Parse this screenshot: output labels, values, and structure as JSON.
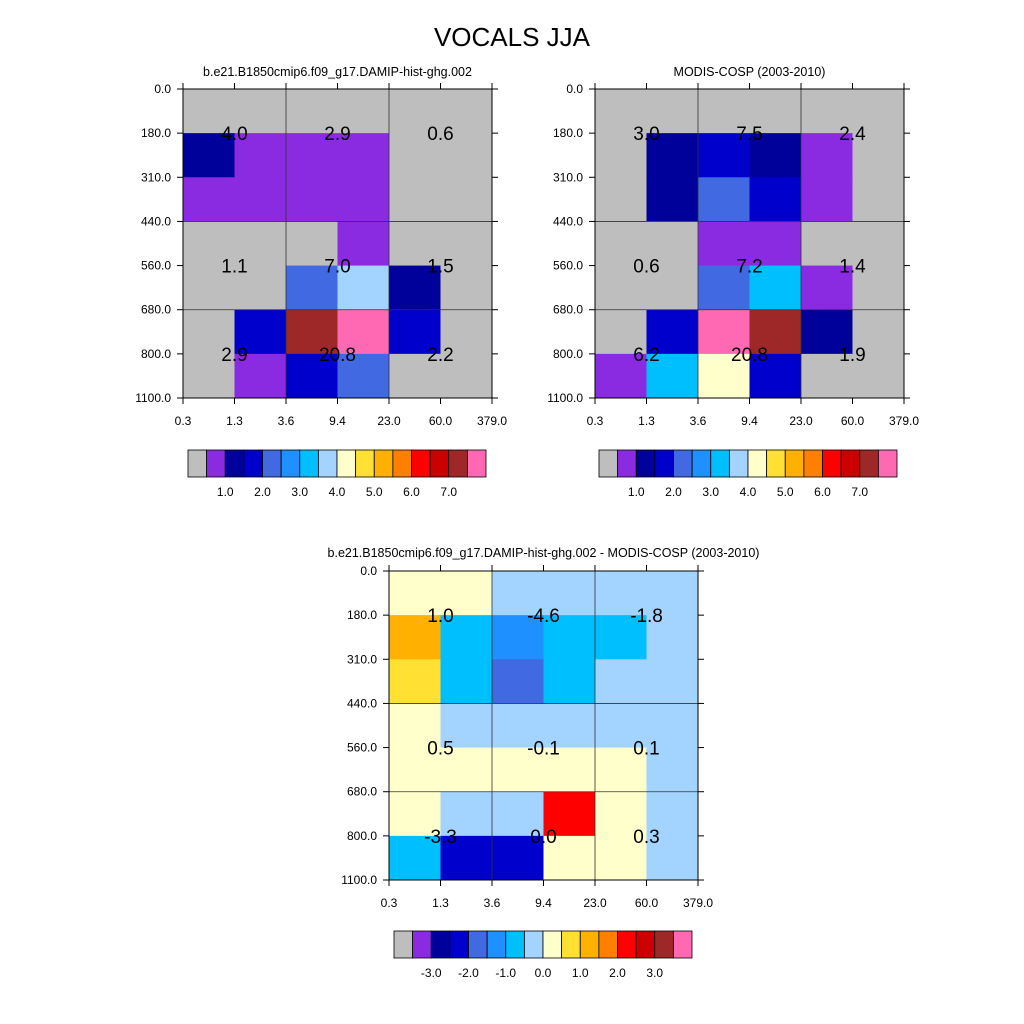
{
  "figure": {
    "title": "VOCALS JJA"
  },
  "chart_data": [
    {
      "type": "heatmap",
      "title": "b.e21.B1850cmip6.f09_g17.DAMIP-hist-ghg.002",
      "x_ticks": [
        "0.3",
        "1.3",
        "3.6",
        "9.4",
        "23.0",
        "60.0",
        "379.0"
      ],
      "y_ticks": [
        "0.0",
        "180.0",
        "310.0",
        "440.0",
        "560.0",
        "680.0",
        "800.0",
        "1100.0"
      ],
      "cells": [
        [
          "#BEBEBE",
          "#BEBEBE",
          "#BEBEBE",
          "#BEBEBE",
          "#BEBEBE",
          "#BEBEBE"
        ],
        [
          "#00009A",
          "#8A2BE2",
          "#8A2BE2",
          "#8A2BE2",
          "#BEBEBE",
          "#BEBEBE"
        ],
        [
          "#8A2BE2",
          "#8A2BE2",
          "#8A2BE2",
          "#8A2BE2",
          "#BEBEBE",
          "#BEBEBE"
        ],
        [
          "#BEBEBE",
          "#BEBEBE",
          "#BEBEBE",
          "#8A2BE2",
          "#BEBEBE",
          "#BEBEBE"
        ],
        [
          "#BEBEBE",
          "#BEBEBE",
          "#4169E1",
          "#A3D3FF",
          "#00009A",
          "#BEBEBE"
        ],
        [
          "#BEBEBE",
          "#0000CD",
          "#9E2828",
          "#FF69B4",
          "#0000CD",
          "#BEBEBE"
        ],
        [
          "#BEBEBE",
          "#8A2BE2",
          "#0000CD",
          "#4169E1",
          "#BEBEBE",
          "#BEBEBE"
        ]
      ],
      "labels": [
        {
          "row": 1,
          "col": 1,
          "text": "4.0"
        },
        {
          "row": 1,
          "col": 3,
          "text": "2.9"
        },
        {
          "row": 1,
          "col": 5,
          "text": "0.6"
        },
        {
          "row": 4,
          "col": 1,
          "text": "1.1"
        },
        {
          "row": 4,
          "col": 3,
          "text": "7.0"
        },
        {
          "row": 4,
          "col": 5,
          "text": "1.5"
        },
        {
          "row": 6,
          "col": 1,
          "text": "2.9"
        },
        {
          "row": 6,
          "col": 3,
          "text": "20.8"
        },
        {
          "row": 6,
          "col": 5,
          "text": "2.2"
        }
      ],
      "colorbar": {
        "colors": [
          "#BEBEBE",
          "#8A2BE2",
          "#00009A",
          "#0000CD",
          "#4169E1",
          "#1E90FF",
          "#00BFFF",
          "#A3D3FF",
          "#FFFFCC",
          "#FFE033",
          "#FFB000",
          "#FF7F00",
          "#FF0000",
          "#CC0000",
          "#9E2828",
          "#FF69B4"
        ],
        "labels": [
          "1.0",
          "2.0",
          "3.0",
          "4.0",
          "5.0",
          "6.0",
          "7.0"
        ],
        "label_boundaries": [
          2,
          4,
          6,
          8,
          10,
          12,
          14
        ]
      }
    },
    {
      "type": "heatmap",
      "title": "MODIS-COSP (2003-2010)",
      "x_ticks": [
        "0.3",
        "1.3",
        "3.6",
        "9.4",
        "23.0",
        "60.0",
        "379.0"
      ],
      "y_ticks": [
        "0.0",
        "180.0",
        "310.0",
        "440.0",
        "560.0",
        "680.0",
        "800.0",
        "1100.0"
      ],
      "cells": [
        [
          "#BEBEBE",
          "#BEBEBE",
          "#BEBEBE",
          "#BEBEBE",
          "#BEBEBE",
          "#BEBEBE"
        ],
        [
          "#BEBEBE",
          "#00009A",
          "#0000CD",
          "#00009A",
          "#8A2BE2",
          "#BEBEBE"
        ],
        [
          "#BEBEBE",
          "#00009A",
          "#4169E1",
          "#0000CD",
          "#8A2BE2",
          "#BEBEBE"
        ],
        [
          "#BEBEBE",
          "#BEBEBE",
          "#8A2BE2",
          "#8A2BE2",
          "#BEBEBE",
          "#BEBEBE"
        ],
        [
          "#BEBEBE",
          "#BEBEBE",
          "#4169E1",
          "#00BFFF",
          "#8A2BE2",
          "#BEBEBE"
        ],
        [
          "#BEBEBE",
          "#0000CD",
          "#FF69B4",
          "#9E2828",
          "#00009A",
          "#BEBEBE"
        ],
        [
          "#8A2BE2",
          "#00BFFF",
          "#FFFFCC",
          "#0000CD",
          "#BEBEBE",
          "#BEBEBE"
        ]
      ],
      "labels": [
        {
          "row": 1,
          "col": 1,
          "text": "3.0"
        },
        {
          "row": 1,
          "col": 3,
          "text": "7.5"
        },
        {
          "row": 1,
          "col": 5,
          "text": "2.4"
        },
        {
          "row": 4,
          "col": 1,
          "text": "0.6"
        },
        {
          "row": 4,
          "col": 3,
          "text": "7.2"
        },
        {
          "row": 4,
          "col": 5,
          "text": "1.4"
        },
        {
          "row": 6,
          "col": 1,
          "text": "6.2"
        },
        {
          "row": 6,
          "col": 3,
          "text": "20.8"
        },
        {
          "row": 6,
          "col": 5,
          "text": "1.9"
        }
      ],
      "colorbar": {
        "colors": [
          "#BEBEBE",
          "#8A2BE2",
          "#00009A",
          "#0000CD",
          "#4169E1",
          "#1E90FF",
          "#00BFFF",
          "#A3D3FF",
          "#FFFFCC",
          "#FFE033",
          "#FFB000",
          "#FF7F00",
          "#FF0000",
          "#CC0000",
          "#9E2828",
          "#FF69B4"
        ],
        "labels": [
          "1.0",
          "2.0",
          "3.0",
          "4.0",
          "5.0",
          "6.0",
          "7.0"
        ],
        "label_boundaries": [
          2,
          4,
          6,
          8,
          10,
          12,
          14
        ]
      }
    },
    {
      "type": "heatmap",
      "title": "b.e21.B1850cmip6.f09_g17.DAMIP-hist-ghg.002 - MODIS-COSP (2003-2010)",
      "x_ticks": [
        "0.3",
        "1.3",
        "3.6",
        "9.4",
        "23.0",
        "60.0",
        "379.0"
      ],
      "y_ticks": [
        "0.0",
        "180.0",
        "310.0",
        "440.0",
        "560.0",
        "680.0",
        "800.0",
        "1100.0"
      ],
      "cells": [
        [
          "#FFFFCC",
          "#FFFFCC",
          "#A3D3FF",
          "#A3D3FF",
          "#A3D3FF",
          "#A3D3FF"
        ],
        [
          "#FFB000",
          "#00BFFF",
          "#1E90FF",
          "#00BFFF",
          "#00BFFF",
          "#A3D3FF"
        ],
        [
          "#FFE033",
          "#00BFFF",
          "#4169E1",
          "#00BFFF",
          "#A3D3FF",
          "#A3D3FF"
        ],
        [
          "#FFFFCC",
          "#A3D3FF",
          "#A3D3FF",
          "#A3D3FF",
          "#A3D3FF",
          "#A3D3FF"
        ],
        [
          "#FFFFCC",
          "#FFFFCC",
          "#FFFFCC",
          "#FFFFCC",
          "#FFFFCC",
          "#A3D3FF"
        ],
        [
          "#FFFFCC",
          "#A3D3FF",
          "#A3D3FF",
          "#FF0000",
          "#FFFFCC",
          "#A3D3FF"
        ],
        [
          "#00BFFF",
          "#0000CD",
          "#0000CD",
          "#FFFFCC",
          "#FFFFCC",
          "#A3D3FF"
        ]
      ],
      "labels": [
        {
          "row": 1,
          "col": 1,
          "text": "1.0"
        },
        {
          "row": 1,
          "col": 3,
          "text": "-4.6"
        },
        {
          "row": 1,
          "col": 5,
          "text": "-1.8"
        },
        {
          "row": 4,
          "col": 1,
          "text": "0.5"
        },
        {
          "row": 4,
          "col": 3,
          "text": "-0.1"
        },
        {
          "row": 4,
          "col": 5,
          "text": "0.1"
        },
        {
          "row": 6,
          "col": 1,
          "text": "-3.3"
        },
        {
          "row": 6,
          "col": 3,
          "text": "0.0"
        },
        {
          "row": 6,
          "col": 5,
          "text": "0.3"
        }
      ],
      "colorbar": {
        "colors": [
          "#BEBEBE",
          "#8A2BE2",
          "#00009A",
          "#0000CD",
          "#4169E1",
          "#1E90FF",
          "#00BFFF",
          "#A3D3FF",
          "#FFFFCC",
          "#FFE033",
          "#FFB000",
          "#FF7F00",
          "#FF0000",
          "#CC0000",
          "#9E2828",
          "#FF69B4"
        ],
        "labels": [
          "-3.0",
          "-2.0",
          "-1.0",
          "0.0",
          "1.0",
          "2.0",
          "3.0"
        ],
        "label_boundaries": [
          2,
          4,
          6,
          8,
          10,
          12,
          14
        ]
      }
    }
  ]
}
